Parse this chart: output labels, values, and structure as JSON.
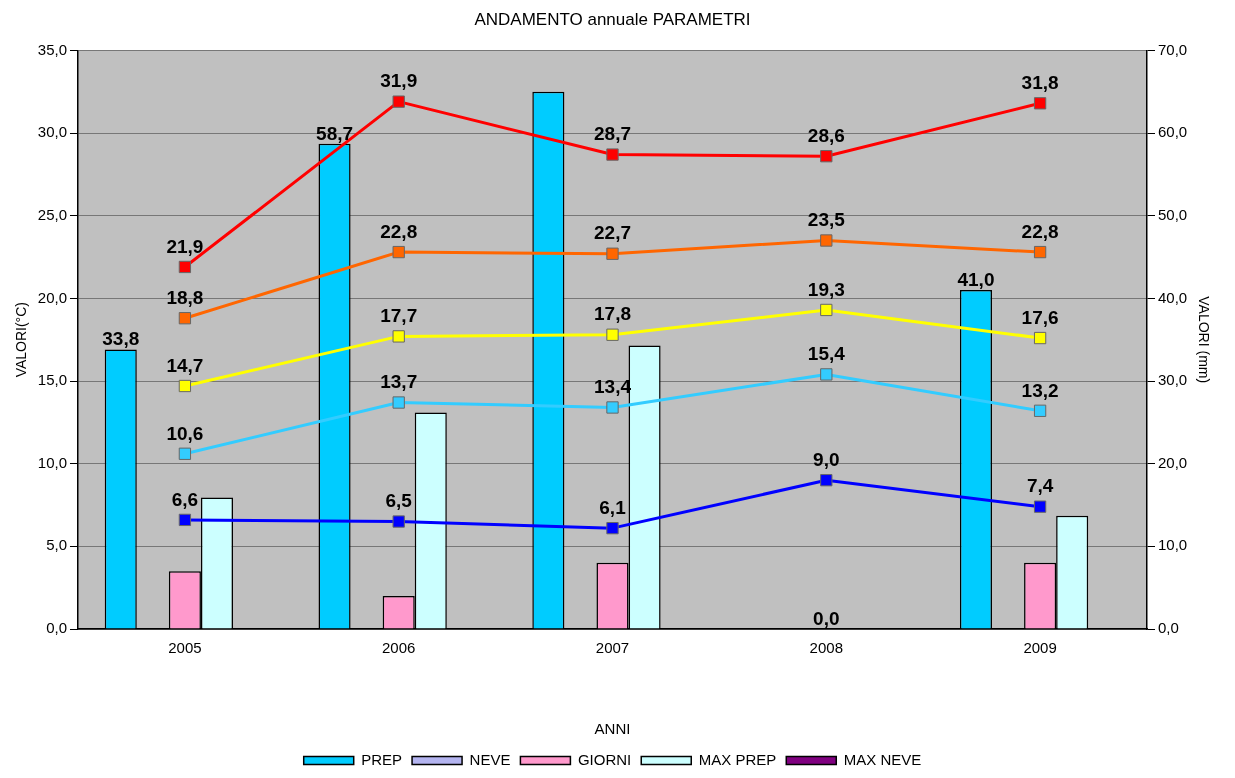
{
  "chart_data": {
    "type": "bar",
    "title": "ANDAMENTO annuale PARAMETRI",
    "xlabel": "ANNI",
    "ylabel": "VALORI(°C)",
    "y2label": "VALORI (mm)",
    "categories": [
      "2005",
      "2006",
      "2007",
      "2008",
      "2009"
    ],
    "series": [
      {
        "name": "PREP",
        "axis": "y2",
        "color": "#00ccff",
        "values": [
          33.8,
          58.7,
          65,
          0,
          41.0
        ],
        "value_labels": [
          "33,8",
          "58,7",
          null,
          "0,0",
          "41,0"
        ]
      },
      {
        "name": "NEVE",
        "axis": "y2",
        "color": "#b4b4f0",
        "values": [
          null,
          null,
          null,
          null,
          null
        ]
      },
      {
        "name": "GIORNI",
        "axis": "y2",
        "color": "#ff99cc",
        "values": [
          7,
          4,
          8,
          null,
          8
        ]
      },
      {
        "name": "MAX PREP",
        "axis": "y2",
        "color": "#ccffff",
        "values": [
          15.9,
          26.2,
          34.3,
          null,
          13.7
        ]
      },
      {
        "name": "MAX NEVE",
        "axis": "y2",
        "color": "#800080",
        "values": [
          null,
          null,
          null,
          null,
          null
        ]
      },
      {
        "type": "line",
        "color": "#ff0000",
        "values": [
          21.9,
          31.9,
          28.7,
          28.6,
          31.8
        ],
        "value_labels": [
          "21,9",
          "31,9",
          "28,7",
          "28,6",
          "31,8"
        ]
      },
      {
        "type": "line",
        "color": "#ff6600",
        "values": [
          18.8,
          22.8,
          22.7,
          23.5,
          22.8
        ],
        "value_labels": [
          "18,8",
          "22,8",
          "22,7",
          "23,5",
          "22,8"
        ]
      },
      {
        "type": "line",
        "color": "#ffff00",
        "values": [
          14.7,
          17.7,
          17.8,
          19.3,
          17.6
        ],
        "value_labels": [
          "14,7",
          "17,7",
          "17,8",
          "19,3",
          "17,6"
        ]
      },
      {
        "type": "line",
        "color": "#33ccff",
        "values": [
          10.6,
          13.7,
          13.4,
          15.4,
          13.2
        ],
        "value_labels": [
          "10,6",
          "13,7",
          "13,4",
          "15,4",
          "13,2"
        ]
      },
      {
        "type": "line",
        "color": "#0000ff",
        "values": [
          6.6,
          6.5,
          6.1,
          9.0,
          7.4
        ],
        "value_labels": [
          "6,6",
          "6,5",
          "6,1",
          "9,0",
          "7,4"
        ]
      }
    ],
    "ylim": [
      0,
      35
    ],
    "yticks": [
      {
        "value": 0,
        "label": "0,0"
      },
      {
        "value": 5,
        "label": "5,0"
      },
      {
        "value": 10,
        "label": "10,0"
      },
      {
        "value": 15,
        "label": "15,0"
      },
      {
        "value": 20,
        "label": "20,0"
      },
      {
        "value": 25,
        "label": "25,0"
      },
      {
        "value": 30,
        "label": "30,0"
      },
      {
        "value": 35,
        "label": "35,0"
      }
    ],
    "y2lim": [
      0,
      70
    ],
    "y2ticks": [
      {
        "value": 0,
        "label": "0,0"
      },
      {
        "value": 10,
        "label": "10,0"
      },
      {
        "value": 20,
        "label": "20,0"
      },
      {
        "value": 30,
        "label": "30,0"
      },
      {
        "value": 40,
        "label": "40,0"
      },
      {
        "value": 50,
        "label": "50,0"
      },
      {
        "value": 60,
        "label": "60,0"
      },
      {
        "value": 70,
        "label": "70,0"
      }
    ],
    "grid": "y",
    "legend": "bottom",
    "marker": "square",
    "line_style": "solid"
  }
}
